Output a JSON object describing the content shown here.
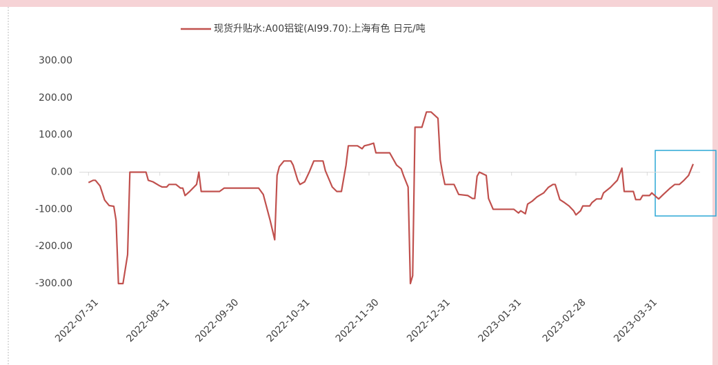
{
  "chart_data": {
    "type": "line",
    "x": [
      "2022-07-31",
      "2022-08-02",
      "2022-08-03",
      "2022-08-05",
      "2022-08-07",
      "2022-08-09",
      "2022-08-11",
      "2022-08-12",
      "2022-08-13",
      "2022-08-15",
      "2022-08-17",
      "2022-08-18",
      "2022-08-25",
      "2022-08-26",
      "2022-08-28",
      "2022-08-31",
      "2022-09-01",
      "2022-09-03",
      "2022-09-04",
      "2022-09-07",
      "2022-09-09",
      "2022-09-10",
      "2022-09-11",
      "2022-09-13",
      "2022-09-16",
      "2022-09-17",
      "2022-09-18",
      "2022-09-26",
      "2022-09-28",
      "2022-10-13",
      "2022-10-15",
      "2022-10-18",
      "2022-10-20",
      "2022-10-21",
      "2022-10-22",
      "2022-10-24",
      "2022-10-27",
      "2022-10-28",
      "2022-10-30",
      "2022-10-31",
      "2022-11-02",
      "2022-11-04",
      "2022-11-06",
      "2022-11-10",
      "2022-11-11",
      "2022-11-14",
      "2022-11-16",
      "2022-11-18",
      "2022-11-20",
      "2022-11-21",
      "2022-11-25",
      "2022-11-27",
      "2022-11-28",
      "2022-11-30",
      "2022-12-02",
      "2022-12-03",
      "2022-12-05",
      "2022-12-09",
      "2022-12-12",
      "2022-12-14",
      "2022-12-15",
      "2022-12-17",
      "2022-12-18",
      "2022-12-19",
      "2022-12-20",
      "2022-12-23",
      "2022-12-25",
      "2022-12-27",
      "2022-12-30",
      "2022-12-31",
      "2023-01-01",
      "2023-01-02",
      "2023-01-06",
      "2023-01-08",
      "2023-01-12",
      "2023-01-14",
      "2023-01-15",
      "2023-01-16",
      "2023-01-17",
      "2023-01-20",
      "2023-01-21",
      "2023-01-23",
      "2023-01-27",
      "2023-02-01",
      "2023-02-03",
      "2023-02-04",
      "2023-02-06",
      "2023-02-07",
      "2023-02-09",
      "2023-02-11",
      "2023-02-12",
      "2023-02-14",
      "2023-02-16",
      "2023-02-18",
      "2023-02-19",
      "2023-02-21",
      "2023-02-23",
      "2023-02-25",
      "2023-02-27",
      "2023-02-28",
      "2023-03-02",
      "2023-03-03",
      "2023-03-06",
      "2023-03-07",
      "2023-03-09",
      "2023-03-11",
      "2023-03-12",
      "2023-03-15",
      "2023-03-18",
      "2023-03-20",
      "2023-03-21",
      "2023-03-25",
      "2023-03-26",
      "2023-03-28",
      "2023-03-29",
      "2023-04-01",
      "2023-04-02",
      "2023-04-04",
      "2023-04-05",
      "2023-04-07",
      "2023-04-10",
      "2023-04-12",
      "2023-04-14",
      "2023-04-16",
      "2023-04-18",
      "2023-04-20"
    ],
    "series": [
      {
        "name": "现货升贴水:A00铝锭(AI99.70):上海有色 日元/吨",
        "color": "#c0504d",
        "values": [
          -28,
          -22,
          -22,
          -37,
          -75,
          -90,
          -92,
          -130,
          -300,
          -300,
          -222,
          0,
          0,
          -22,
          -26,
          -37,
          -40,
          -40,
          -33,
          -33,
          -43,
          -43,
          -63,
          -52,
          -33,
          0,
          -52,
          -52,
          -43,
          -43,
          -60,
          -130,
          -182,
          -9,
          15,
          30,
          30,
          19,
          -22,
          -33,
          -26,
          0,
          30,
          30,
          4,
          -40,
          -52,
          -52,
          19,
          71,
          71,
          63,
          71,
          74,
          78,
          52,
          52,
          52,
          19,
          9,
          -9,
          -40,
          -300,
          -279,
          121,
          121,
          162,
          162,
          145,
          33,
          -4,
          -33,
          -33,
          -60,
          -63,
          -71,
          -71,
          -11,
          0,
          -9,
          -71,
          -100,
          -100,
          -100,
          -110,
          -104,
          -112,
          -86,
          -78,
          -67,
          -63,
          -56,
          -41,
          -33,
          -33,
          -74,
          -82,
          -91,
          -104,
          -115,
          -104,
          -91,
          -91,
          -82,
          -72,
          -72,
          -56,
          -41,
          -22,
          11,
          -52,
          -52,
          -74,
          -74,
          -63,
          -63,
          -56,
          -67,
          -72,
          -60,
          -43,
          -33,
          -33,
          -22,
          -9,
          22
        ]
      }
    ],
    "xlim": [
      "2022-07-27",
      "2023-04-23"
    ],
    "xticks": [
      "2022-07-31",
      "2022-08-31",
      "2022-09-30",
      "2022-10-31",
      "2022-11-30",
      "2022-12-31",
      "2023-01-31",
      "2023-02-28",
      "2023-03-31"
    ],
    "ylim": [
      -300,
      300
    ],
    "yticks": [
      {
        "value": 300,
        "label": "300.00"
      },
      {
        "value": 200,
        "label": "200.00"
      },
      {
        "value": 100,
        "label": "100.00"
      },
      {
        "value": 0,
        "label": "0.00"
      },
      {
        "value": -100,
        "label": "-100.00"
      },
      {
        "value": -200,
        "label": "-200.00"
      },
      {
        "value": -300,
        "label": "-300.00"
      }
    ],
    "legend": "top"
  }
}
